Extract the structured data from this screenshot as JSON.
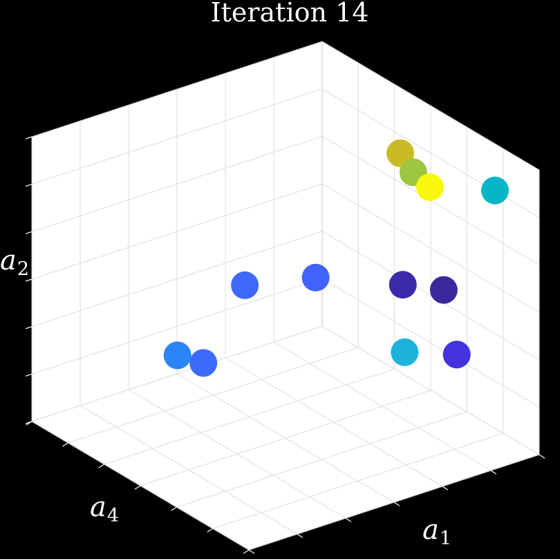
{
  "chart_data": {
    "type": "scatter",
    "projection": "3d",
    "title": "Iteration 14",
    "axes": {
      "x": {
        "label": "a",
        "subscript": "1"
      },
      "y": {
        "label": "a",
        "subscript": "4"
      },
      "z": {
        "label": "a",
        "subscript": "2"
      }
    },
    "grid": true,
    "points": [
      {
        "x": 0.36,
        "y": 0.0,
        "z": 0.77,
        "color": "#c9bb25"
      },
      {
        "x": 0.42,
        "y": 0.0,
        "z": 0.73,
        "color": "#9dc640"
      },
      {
        "x": 0.55,
        "y": 0.04,
        "z": 0.75,
        "color": "#f8f80f"
      },
      {
        "x": 0.93,
        "y": 0.1,
        "z": 0.93,
        "color": "#03b7c7"
      },
      {
        "x": 0.56,
        "y": 0.0,
        "z": 0.38,
        "color": "#3c289e"
      },
      {
        "x": 0.88,
        "y": 0.38,
        "z": 0.67,
        "color": "#3a29a8"
      },
      {
        "x": 0.62,
        "y": 0.0,
        "z": 0.18,
        "color": "#4433dd"
      },
      {
        "x": 0.38,
        "y": 0.0,
        "z": 0.08,
        "color": "#1cb2dc"
      },
      {
        "x": 0.35,
        "y": 0.76,
        "z": 0.31,
        "color": "#2b84f8"
      },
      {
        "x": 0.58,
        "y": 0.7,
        "z": 0.64,
        "color": "#3f68fb"
      },
      {
        "x": 0.63,
        "y": 0.88,
        "z": 0.45,
        "color": "#3e6afb"
      },
      {
        "x": 1.0,
        "y": 0.77,
        "z": 0.88,
        "color": "#4262fd"
      }
    ]
  }
}
